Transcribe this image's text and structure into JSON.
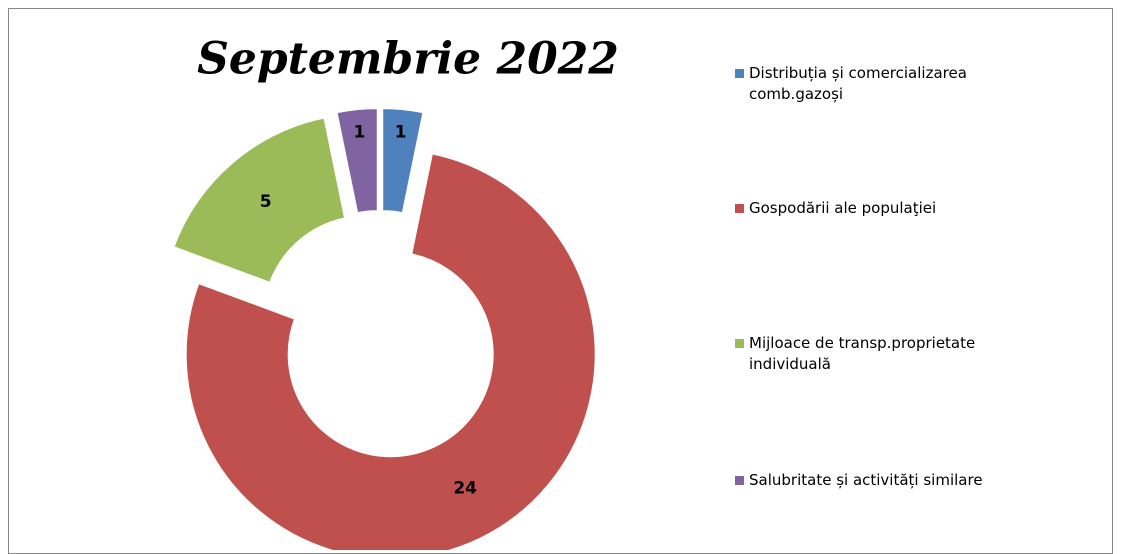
{
  "chart_data": {
    "type": "doughnut",
    "title": "Septembrie 2022",
    "categories": [
      "Distribuția și comercializarea comb.gazoși",
      "Gospodării ale populaţiei",
      "Mijloace de transp.proprietate individuală",
      "Salubritate și activități similare"
    ],
    "values": [
      1,
      24,
      5,
      1
    ],
    "colors": [
      "#4f81bd",
      "#c0504d",
      "#9bbb59",
      "#8064a2"
    ],
    "legend": "right"
  }
}
